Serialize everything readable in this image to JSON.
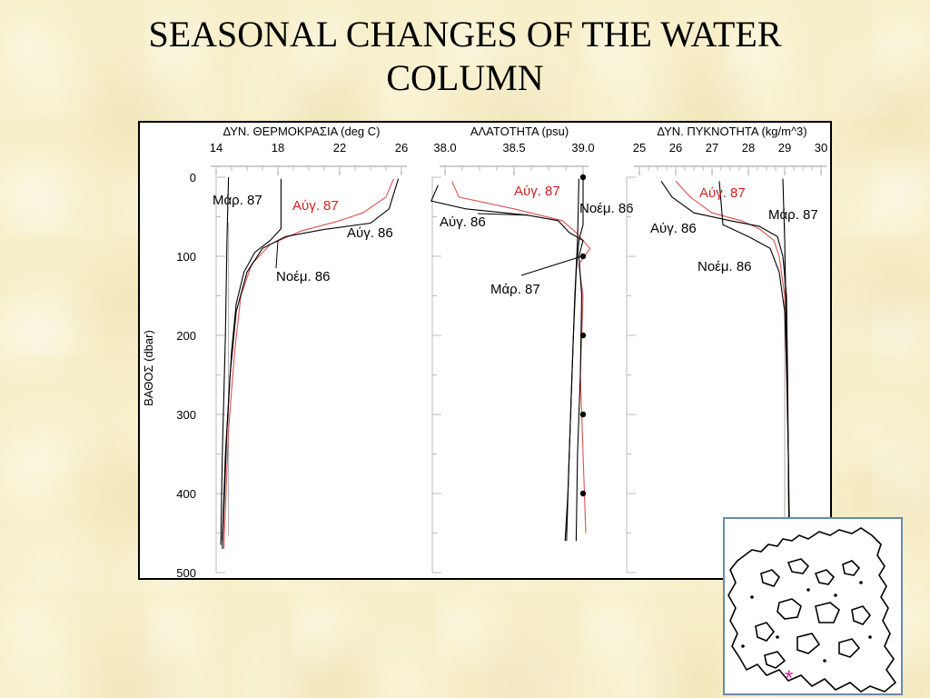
{
  "slide": {
    "title_line1": "SEASONAL CHANGES OF THE WATER",
    "title_line2": "COLUMN"
  },
  "chart_data": [
    {
      "type": "line",
      "panel": "temperature",
      "xlabel": "ΔΥΝ. ΘΕΡΜΟΚΡΑΣΙΑ (deg C)",
      "ylabel": "ΒΑΘΟΣ (dbar)",
      "x_ticks": [
        "14",
        "18",
        "22",
        "26"
      ],
      "xlim": [
        14,
        26
      ],
      "ylim": [
        0,
        500
      ],
      "y_inverted": true,
      "y_ticks": [
        "0",
        "100",
        "200",
        "300",
        "400",
        "500"
      ],
      "series": [
        {
          "name": "Μάρ. 87",
          "color": "#000000",
          "points": [
            [
              14.8,
              0
            ],
            [
              14.7,
              80
            ],
            [
              14.6,
              200
            ],
            [
              14.4,
              350
            ],
            [
              14.3,
              465
            ]
          ]
        },
        {
          "name": "Αύγ. 87",
          "color": "#e05050",
          "points": [
            [
              25.5,
              2
            ],
            [
              25.0,
              25
            ],
            [
              23.5,
              45
            ],
            [
              22.0,
              55
            ],
            [
              19.5,
              68
            ],
            [
              17.5,
              85
            ],
            [
              16.3,
              110
            ],
            [
              15.6,
              150
            ],
            [
              15.2,
              220
            ],
            [
              14.8,
              320
            ],
            [
              14.5,
              470
            ]
          ]
        },
        {
          "name": "Αύγ. 86",
          "color": "#000000",
          "points": [
            [
              25.8,
              2
            ],
            [
              25.2,
              40
            ],
            [
              24.0,
              58
            ],
            [
              21.0,
              66
            ],
            [
              18.5,
              75
            ],
            [
              17.0,
              90
            ],
            [
              16.0,
              120
            ],
            [
              15.3,
              170
            ],
            [
              14.9,
              250
            ],
            [
              14.6,
              350
            ],
            [
              14.4,
              460
            ]
          ]
        },
        {
          "name": "Νοέμ. 86",
          "color": "#000000",
          "points": [
            [
              18.2,
              2
            ],
            [
              18.2,
              65
            ],
            [
              17.5,
              80
            ],
            [
              16.5,
              95
            ],
            [
              15.8,
              120
            ],
            [
              15.3,
              160
            ],
            [
              15.0,
              220
            ],
            [
              14.7,
              320
            ],
            [
              14.4,
              470
            ]
          ]
        }
      ],
      "annotations": [
        "Μάρ. 87",
        "Αύγ. 87",
        "Αύγ. 86",
        "Νοέμ. 86"
      ]
    },
    {
      "type": "line",
      "panel": "salinity",
      "xlabel": "ΑΛΑΤΟΤΗΤΑ (psu)",
      "x_ticks": [
        "38.0",
        "38.5",
        "39.0"
      ],
      "xlim": [
        38.0,
        39.0
      ],
      "ylim": [
        0,
        500
      ],
      "y_inverted": true,
      "sample_depths": [
        0,
        100,
        200,
        300,
        400
      ],
      "series": [
        {
          "name": "Αύγ. 87",
          "color": "#e05050",
          "points": [
            [
              38.05,
              5
            ],
            [
              38.1,
              25
            ],
            [
              38.5,
              40
            ],
            [
              38.85,
              55
            ],
            [
              38.95,
              70
            ],
            [
              39.05,
              90
            ],
            [
              38.97,
              110
            ],
            [
              39.0,
              150
            ],
            [
              38.98,
              250
            ],
            [
              39.0,
              350
            ],
            [
              39.02,
              450
            ]
          ]
        },
        {
          "name": "Αύγ. 86",
          "color": "#000000",
          "points": [
            [
              37.95,
              10
            ],
            [
              37.9,
              30
            ],
            [
              38.15,
              40
            ],
            [
              38.6,
              48
            ],
            [
              38.82,
              55
            ],
            [
              38.9,
              70
            ],
            [
              39.0,
              80
            ],
            [
              38.97,
              100
            ],
            [
              38.99,
              150
            ],
            [
              38.98,
              250
            ],
            [
              38.96,
              350
            ],
            [
              38.95,
              460
            ]
          ]
        },
        {
          "name": "Νοέμ. 86",
          "color": "#000000",
          "points": [
            [
              39.0,
              2
            ],
            [
              39.0,
              60
            ],
            [
              38.97,
              80
            ],
            [
              38.95,
              120
            ],
            [
              38.93,
              200
            ],
            [
              38.91,
              300
            ],
            [
              38.89,
              400
            ],
            [
              38.87,
              460
            ]
          ]
        },
        {
          "name": "Μάρ. 87",
          "color": "#000000",
          "points": [
            [
              38.97,
              2
            ],
            [
              38.96,
              80
            ],
            [
              38.94,
              150
            ],
            [
              38.92,
              250
            ],
            [
              38.9,
              350
            ],
            [
              38.88,
              460
            ]
          ]
        }
      ],
      "annotations": [
        "Αύγ. 87",
        "Νοέμ. 86",
        "Αύγ. 86",
        "Μάρ. 87"
      ]
    },
    {
      "type": "line",
      "panel": "density",
      "xlabel": "ΔΥΝ. ΠΥΚΝΟΤΗΤΑ (kg/m^3)",
      "x_ticks": [
        "25",
        "26",
        "27",
        "28",
        "29",
        "30"
      ],
      "xlim": [
        25,
        30
      ],
      "ylim": [
        0,
        500
      ],
      "y_inverted": true,
      "series": [
        {
          "name": "Αύγ. 87",
          "color": "#e05050",
          "points": [
            [
              26.0,
              5
            ],
            [
              26.4,
              25
            ],
            [
              27.0,
              45
            ],
            [
              27.8,
              55
            ],
            [
              28.3,
              65
            ],
            [
              28.7,
              80
            ],
            [
              28.85,
              100
            ],
            [
              29.0,
              150
            ],
            [
              29.05,
              250
            ],
            [
              29.1,
              350
            ],
            [
              29.15,
              470
            ]
          ]
        },
        {
          "name": "Αύγ. 86",
          "color": "#000000",
          "points": [
            [
              25.6,
              5
            ],
            [
              25.9,
              25
            ],
            [
              26.5,
              45
            ],
            [
              27.5,
              55
            ],
            [
              28.3,
              62
            ],
            [
              28.8,
              75
            ],
            [
              28.95,
              100
            ],
            [
              29.05,
              150
            ],
            [
              29.08,
              250
            ],
            [
              29.1,
              350
            ],
            [
              29.13,
              470
            ]
          ]
        },
        {
          "name": "Νοέμ. 86",
          "color": "#000000",
          "points": [
            [
              27.2,
              5
            ],
            [
              27.3,
              60
            ],
            [
              28.0,
              75
            ],
            [
              28.6,
              90
            ],
            [
              28.85,
              120
            ],
            [
              29.0,
              170
            ],
            [
              29.06,
              250
            ],
            [
              29.1,
              350
            ],
            [
              29.12,
              470
            ]
          ]
        },
        {
          "name": "Μάρ. 87",
          "color": "#000000",
          "points": [
            [
              28.95,
              2
            ],
            [
              29.0,
              80
            ],
            [
              29.05,
              200
            ],
            [
              29.1,
              350
            ],
            [
              29.12,
              470
            ]
          ]
        }
      ],
      "annotations": [
        "Αύγ. 87",
        "Μάρ. 87",
        "Αύγ. 86",
        "Νοέμ. 86"
      ]
    }
  ],
  "map_inset": {
    "marker": "*",
    "marker_color": "#e0209a"
  }
}
